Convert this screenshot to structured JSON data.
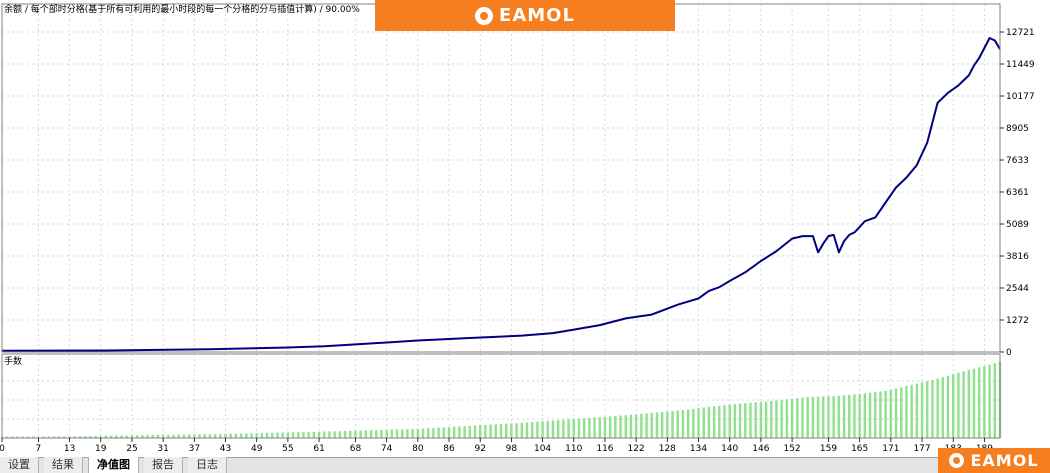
{
  "header": {
    "caption": "余额 / 每个部时分格(基于所有可利用的最小时段的每一个分格的分与插值计算) / 90.00%"
  },
  "brand": {
    "logo_text": "EAMOL",
    "color": "#f47e20"
  },
  "tabs": [
    {
      "label": "设置",
      "active": false
    },
    {
      "label": "结果",
      "active": false
    },
    {
      "label": "净值图",
      "active": true
    },
    {
      "label": "报告",
      "active": false
    },
    {
      "label": "日志",
      "active": false
    }
  ],
  "chart_data": [
    {
      "type": "line",
      "title": "",
      "series": [
        {
          "color": "#000080",
          "x": [
            0,
            20,
            40,
            55,
            62,
            70,
            80,
            90,
            100,
            106,
            110,
            115,
            120,
            125,
            130,
            134,
            136,
            138,
            140,
            143,
            146,
            149,
            152,
            154,
            156,
            157,
            158,
            159,
            160,
            161,
            162,
            163,
            164,
            166,
            168,
            170,
            172,
            174,
            176,
            178,
            180,
            182,
            184,
            186,
            187,
            188,
            189,
            190,
            191,
            192
          ],
          "y": [
            50,
            60,
            110,
            180,
            230,
            330,
            460,
            560,
            660,
            760,
            900,
            1080,
            1350,
            1500,
            1900,
            2150,
            2450,
            2600,
            2850,
            3200,
            3650,
            4050,
            4550,
            4650,
            4650,
            4000,
            4350,
            4650,
            4700,
            4000,
            4450,
            4700,
            4800,
            5250,
            5400,
            6000,
            6600,
            7000,
            7500,
            8400,
            10000,
            10400,
            10700,
            11100,
            11500,
            11800,
            12200,
            12600,
            12500,
            12150
          ]
        }
      ],
      "y_ticks": [
        "12721",
        "11449",
        "10177",
        "8905",
        "7633",
        "6361",
        "5089",
        "3816",
        "2544",
        "1272",
        "0"
      ],
      "ylim": [
        0,
        12721
      ],
      "xlim": [
        0,
        192
      ],
      "grid": true
    },
    {
      "type": "bar",
      "title": "",
      "ylabel": "手数",
      "series": [
        {
          "color": "#90e090",
          "x": [
            0,
            10,
            20,
            40,
            60,
            80,
            90,
            100,
            110,
            120,
            130,
            140,
            150,
            155,
            160,
            165,
            170,
            175,
            180,
            184,
            188,
            192
          ],
          "y": [
            0.02,
            0.02,
            0.03,
            0.05,
            0.08,
            0.12,
            0.16,
            0.2,
            0.25,
            0.3,
            0.36,
            0.44,
            0.5,
            0.54,
            0.55,
            0.58,
            0.62,
            0.7,
            0.78,
            0.86,
            0.93,
            1.0
          ]
        }
      ],
      "ylim": [
        0,
        1.0
      ],
      "grid": true
    }
  ],
  "x_axis": {
    "ticks": [
      "0",
      "7",
      "13",
      "19",
      "25",
      "31",
      "37",
      "43",
      "49",
      "55",
      "61",
      "68",
      "74",
      "80",
      "86",
      "92",
      "98",
      "104",
      "110",
      "116",
      "122",
      "128",
      "134",
      "140",
      "146",
      "152",
      "159",
      "165",
      "171",
      "177",
      "183",
      "189"
    ]
  }
}
